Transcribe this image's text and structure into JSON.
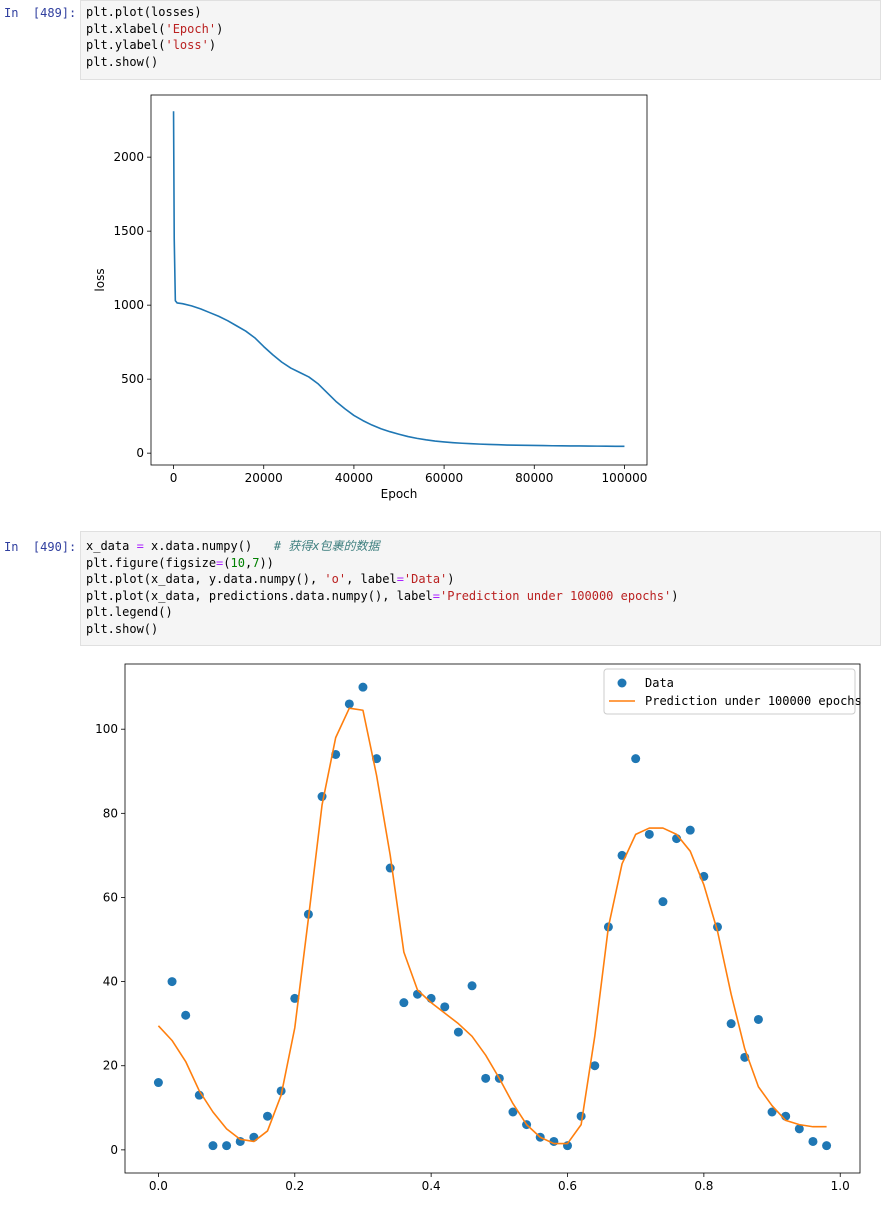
{
  "cells": [
    {
      "prompt": "In  [489]:",
      "code_lines": [
        [
          {
            "t": "plt.plot(losses)"
          }
        ],
        [
          {
            "t": "plt.xlabel("
          },
          {
            "t": "'Epoch'",
            "c": "str"
          },
          {
            "t": ")"
          }
        ],
        [
          {
            "t": "plt.ylabel("
          },
          {
            "t": "'loss'",
            "c": "str"
          },
          {
            "t": ")"
          }
        ],
        [
          {
            "t": "plt.show()"
          }
        ]
      ]
    },
    {
      "prompt": "In  [490]:",
      "code_lines": [
        [
          {
            "t": "x_data "
          },
          {
            "t": "=",
            "c": "op"
          },
          {
            "t": " x.data.numpy()   "
          },
          {
            "t": "# 获得x包裹的数据",
            "c": "cmt"
          }
        ],
        [
          {
            "t": "plt.figure(figsize"
          },
          {
            "t": "=",
            "c": "op"
          },
          {
            "t": "("
          },
          {
            "t": "10",
            "c": "num"
          },
          {
            "t": ","
          },
          {
            "t": "7",
            "c": "num"
          },
          {
            "t": "))"
          }
        ],
        [
          {
            "t": "plt.plot(x_data, y.data.numpy(), "
          },
          {
            "t": "'o'",
            "c": "str"
          },
          {
            "t": ", label"
          },
          {
            "t": "=",
            "c": "op"
          },
          {
            "t": "'Data'",
            "c": "str"
          },
          {
            "t": ")"
          }
        ],
        [
          {
            "t": "plt.plot(x_data, predictions.data.numpy(), label"
          },
          {
            "t": "=",
            "c": "op"
          },
          {
            "t": "'Prediction under 100000 epochs'",
            "c": "str"
          },
          {
            "t": ")"
          }
        ],
        [
          {
            "t": "plt.legend()"
          }
        ],
        [
          {
            "t": "plt.show()"
          }
        ]
      ]
    }
  ],
  "chart_data": [
    {
      "type": "line",
      "title": "",
      "xlabel": "Epoch",
      "ylabel": "loss",
      "xlim": [
        -5000,
        105000
      ],
      "ylim": [
        -80,
        2420
      ],
      "xticks": [
        0,
        20000,
        40000,
        60000,
        80000,
        100000
      ],
      "yticks": [
        0,
        500,
        1000,
        1500,
        2000
      ],
      "grid": false,
      "color": "#1f77b4",
      "series": [
        {
          "x": [
            0,
            150,
            400,
            800,
            2000,
            4000,
            6000,
            8000,
            10000,
            12000,
            14000,
            16000,
            18000,
            20000,
            22000,
            24000,
            26000,
            28000,
            30000,
            32000,
            34000,
            36000,
            38000,
            40000,
            42000,
            44000,
            46000,
            48000,
            50000,
            52000,
            54000,
            56000,
            58000,
            60000,
            62000,
            64000,
            66000,
            68000,
            70000,
            72000,
            74000,
            76000,
            78000,
            80000,
            82000,
            84000,
            86000,
            88000,
            90000,
            92000,
            94000,
            96000,
            98000,
            100000
          ],
          "values": [
            2310,
            1450,
            1030,
            1015,
            1010,
            995,
            975,
            950,
            925,
            895,
            860,
            825,
            780,
            720,
            665,
            615,
            575,
            545,
            515,
            470,
            410,
            350,
            300,
            255,
            220,
            190,
            165,
            145,
            128,
            112,
            100,
            90,
            82,
            76,
            71,
            67,
            64,
            61,
            59,
            57,
            55,
            54,
            53,
            52,
            51,
            50,
            49.5,
            49,
            48.5,
            48,
            47.5,
            47,
            46.5,
            46
          ]
        }
      ]
    },
    {
      "type": "scatter",
      "title": "",
      "xlabel": "",
      "ylabel": "",
      "xlim": [
        -0.049,
        1.029
      ],
      "ylim": [
        -5.5,
        115.5
      ],
      "xticks": [
        0.0,
        0.2,
        0.4,
        0.6,
        0.8,
        1.0
      ],
      "xtick_labels": [
        "0.0",
        "0.2",
        "0.4",
        "0.6",
        "0.8",
        "1.0"
      ],
      "yticks": [
        0,
        20,
        40,
        60,
        80,
        100
      ],
      "grid": false,
      "legend": "top-right",
      "x": [
        0.0,
        0.02,
        0.04,
        0.06,
        0.08,
        0.1,
        0.12,
        0.14,
        0.16,
        0.18,
        0.2,
        0.22,
        0.24,
        0.26,
        0.28,
        0.3,
        0.32,
        0.34,
        0.36,
        0.38,
        0.4,
        0.42,
        0.44,
        0.46,
        0.48,
        0.5,
        0.52,
        0.54,
        0.56,
        0.58,
        0.6,
        0.62,
        0.64,
        0.66,
        0.68,
        0.7,
        0.72,
        0.74,
        0.76,
        0.78,
        0.8,
        0.82,
        0.84,
        0.86,
        0.88,
        0.9,
        0.92,
        0.94,
        0.96,
        0.98
      ],
      "series": [
        {
          "name": "Data",
          "kind": "scatter",
          "color": "#1f77b4",
          "values": [
            16,
            40,
            32,
            13,
            1,
            1,
            2,
            3,
            8,
            14,
            36,
            56,
            84,
            94,
            106,
            110,
            93,
            67,
            35,
            37,
            36,
            34,
            28,
            39,
            17,
            17,
            9,
            6,
            3,
            2,
            1,
            8,
            20,
            53,
            70,
            93,
            75,
            59,
            74,
            76,
            65,
            53,
            30,
            22,
            31,
            9,
            8,
            5,
            2,
            1
          ]
        },
        {
          "name": "Prediction under 100000 epochs",
          "kind": "line",
          "color": "#ff7f0e",
          "values": [
            29.5,
            26,
            21,
            14,
            9,
            5,
            2.5,
            2,
            4.5,
            13,
            29,
            55,
            82,
            98,
            105,
            104.5,
            89,
            70,
            47,
            38,
            35,
            32.5,
            30,
            27,
            22.5,
            17,
            11,
            6,
            3,
            1.5,
            1.5,
            6,
            27,
            53,
            68,
            75,
            76.5,
            76.5,
            75,
            71,
            63,
            52,
            37,
            24,
            15,
            10.5,
            7,
            6,
            5.5,
            5.5
          ]
        }
      ]
    }
  ]
}
